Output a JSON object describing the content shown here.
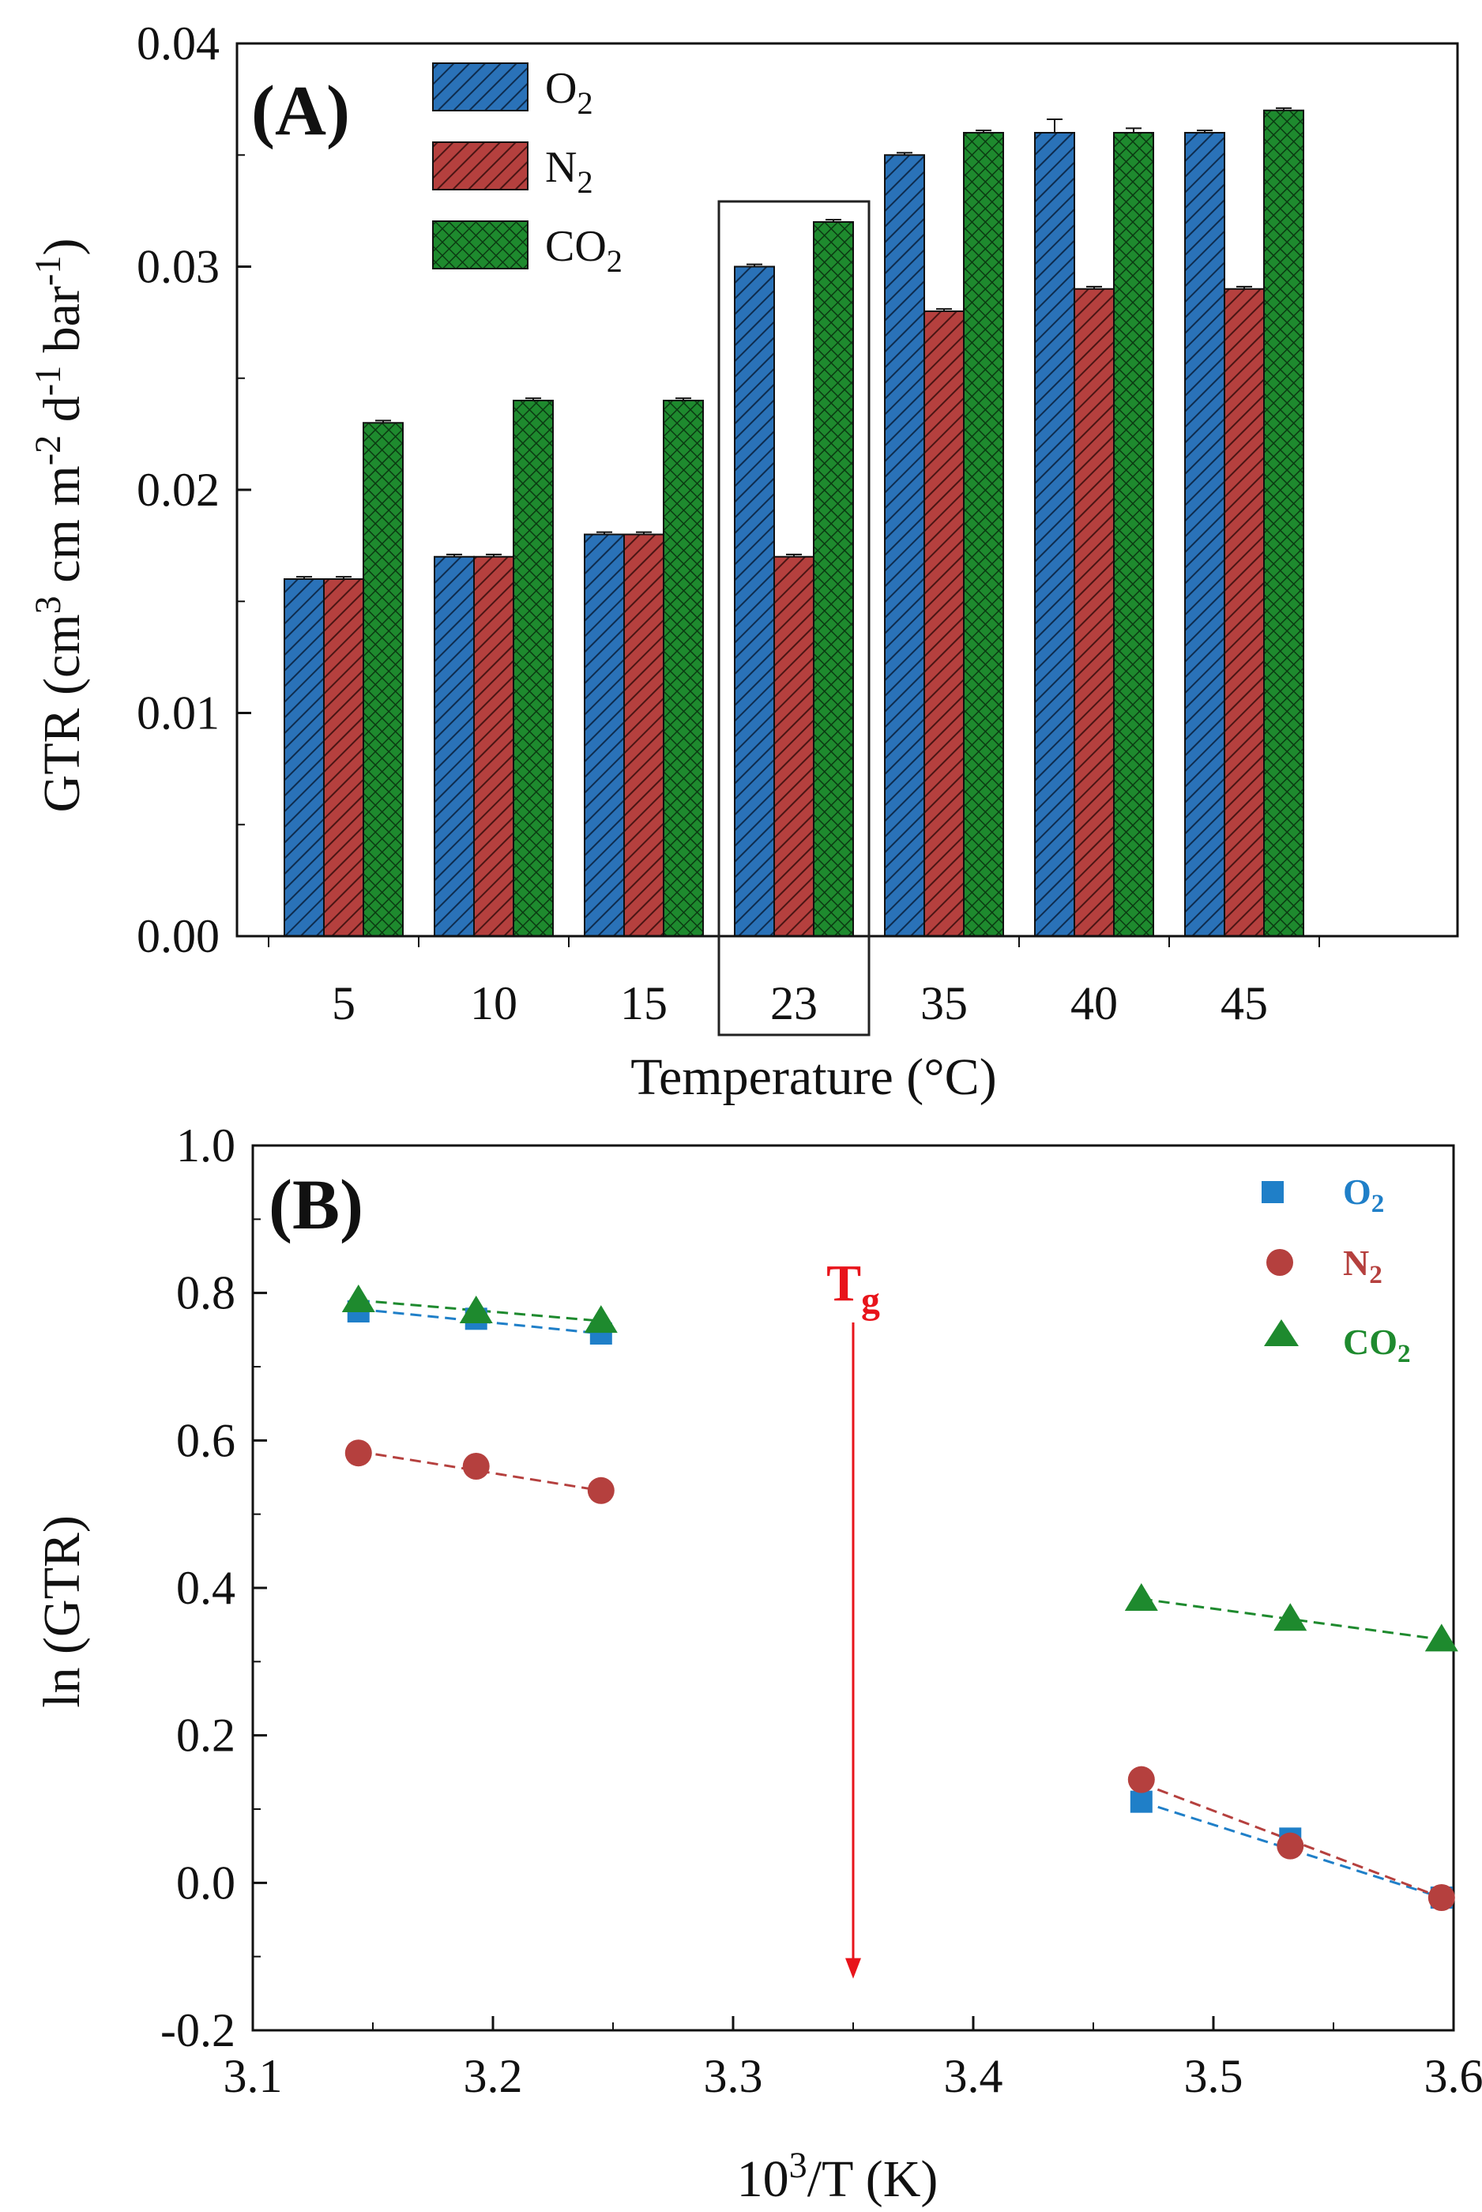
{
  "chart_data": [
    {
      "type": "bar",
      "panel_label": "(A)",
      "xlabel": "Temperature (°C)",
      "ylabel_parts": [
        "GTR (cm",
        "3",
        " cm  m",
        "-2",
        " d",
        "-1",
        " bar",
        "-1",
        ")"
      ],
      "categories": [
        "5",
        "10",
        "15",
        "23",
        "35",
        "40",
        "45"
      ],
      "highlighted_category": "23",
      "ylim": [
        0,
        0.04
      ],
      "yticks": [
        "0.00",
        "0.01",
        "0.02",
        "0.03",
        "0.04"
      ],
      "ytick_values": [
        0,
        0.01,
        0.02,
        0.03,
        0.04
      ],
      "legend_position": "top-left",
      "series": [
        {
          "name": "O",
          "sub": "2",
          "color": "#2a72b8",
          "values": [
            0.016,
            0.017,
            0.018,
            0.03,
            0.035,
            0.036,
            0.036
          ],
          "errors": [
            0.0001,
            0.0001,
            0.0001,
            0.0001,
            0.0001,
            0.0006,
            0.0001
          ]
        },
        {
          "name": "N",
          "sub": "2",
          "color": "#b5403e",
          "values": [
            0.016,
            0.017,
            0.018,
            0.017,
            0.028,
            0.029,
            0.029
          ],
          "errors": [
            0.0001,
            0.0001,
            0.0001,
            0.0001,
            0.0001,
            0.0001,
            0.0001
          ]
        },
        {
          "name": "CO",
          "sub": "2",
          "color": "#1e8a2e",
          "values": [
            0.023,
            0.024,
            0.024,
            0.032,
            0.036,
            0.036,
            0.037
          ],
          "errors": [
            0.0001,
            0.0001,
            0.0001,
            0.0001,
            0.0001,
            0.0002,
            0.0001
          ]
        }
      ]
    },
    {
      "type": "scatter",
      "panel_label": "(B)",
      "xlabel_parts": [
        "10",
        "3",
        "/T (K)"
      ],
      "ylabel": "ln (GTR)",
      "xlim": [
        3.1,
        3.6
      ],
      "ylim": [
        -0.2,
        1.0
      ],
      "xticks": [
        "3.1",
        "3.2",
        "3.3",
        "3.4",
        "3.5",
        "3.6"
      ],
      "xtick_values": [
        3.1,
        3.2,
        3.3,
        3.4,
        3.5,
        3.6
      ],
      "yticks": [
        "-0.2",
        "0.0",
        "0.2",
        "0.4",
        "0.6",
        "0.8",
        "1.0"
      ],
      "ytick_values": [
        -0.2,
        0.0,
        0.2,
        0.4,
        0.6,
        0.8,
        1.0
      ],
      "legend_position": "top-right",
      "annotation": {
        "text": "T",
        "sub": "g",
        "x": 3.35,
        "y_from": 0.76,
        "y_to": -0.13,
        "color": "#e8141b"
      },
      "series": [
        {
          "name": "O",
          "sub": "2",
          "marker": "square",
          "color": "#1f7fc8",
          "points": [
            [
              3.144,
              0.775
            ],
            [
              3.193,
              0.765
            ],
            [
              3.245,
              0.745
            ],
            [
              3.47,
              0.11
            ],
            [
              3.532,
              0.06
            ],
            [
              3.595,
              -0.02
            ]
          ],
          "fits": [
            [
              [
                3.144,
                0.778
              ],
              [
                3.245,
                0.745
              ]
            ],
            [
              [
                3.47,
                0.11
              ],
              [
                3.595,
                -0.02
              ]
            ]
          ]
        },
        {
          "name": "N",
          "sub": "2",
          "marker": "circle",
          "color": "#b5403e",
          "points": [
            [
              3.144,
              0.583
            ],
            [
              3.193,
              0.565
            ],
            [
              3.245,
              0.532
            ],
            [
              3.47,
              0.14
            ],
            [
              3.532,
              0.05
            ],
            [
              3.595,
              -0.02
            ]
          ],
          "fits": [
            [
              [
                3.144,
                0.585
              ],
              [
                3.245,
                0.532
              ]
            ],
            [
              [
                3.47,
                0.135
              ],
              [
                3.595,
                -0.02
              ]
            ]
          ]
        },
        {
          "name": "CO",
          "sub": "2",
          "marker": "triangle",
          "color": "#1e8a2e",
          "points": [
            [
              3.144,
              0.79
            ],
            [
              3.193,
              0.775
            ],
            [
              3.245,
              0.762
            ],
            [
              3.47,
              0.385
            ],
            [
              3.532,
              0.358
            ],
            [
              3.595,
              0.33
            ]
          ],
          "fits": [
            [
              [
                3.144,
                0.79
              ],
              [
                3.245,
                0.762
              ]
            ],
            [
              [
                3.47,
                0.385
              ],
              [
                3.595,
                0.33
              ]
            ]
          ]
        }
      ]
    }
  ]
}
